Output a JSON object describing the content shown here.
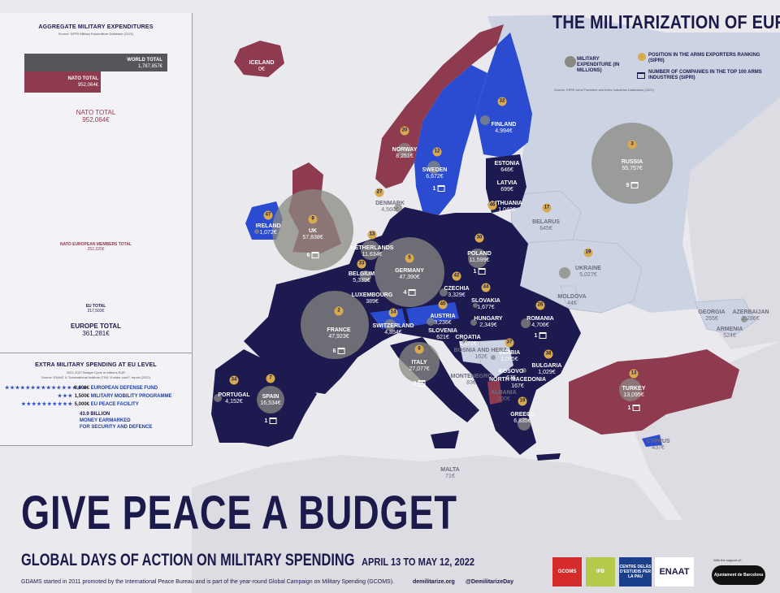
{
  "title": "THE MILITARIZATION OF EUROPE",
  "legend": {
    "military_expenditure": "MILITARY EXPENDITURE (IN MILLIONS)",
    "arms_ranking": "POSITION IN THE ARMS EXPORTERS RANKING (SIPRI)",
    "companies": "NUMBER OF COMPANIES IN THE TOP 100 ARMS INDUSTRIES (SIPRI)",
    "source": "Source: SIPRI Arms Transfers and Arms Industries Databases (2021)"
  },
  "aggregate": {
    "heading": "AGGREGATE MILITARY EXPENDITURES",
    "source": "Source: SIPRI Military Expenditure Database (2021)",
    "world_label": "WORLD TOTAL",
    "world_value": "1,787,857€",
    "nato_label": "NATO TOTAL",
    "nato_value": "952,064€",
    "nato_circle_label": "NATO TOTAL",
    "nato_circle_value": "952,064€",
    "nato_eu_label": "NATO EUROPEAN MEMBERS TOTAL",
    "nato_eu_value": "252,320€",
    "eu_label": "EU TOTAL",
    "eu_value": "217,503€",
    "europe_label": "EUROPE TOTAL",
    "europe_value": "361,281€"
  },
  "extra": {
    "heading": "EXTRA MILITARY SPENDING AT EU LEVEL",
    "sub": "2021-2027 Budget Cycle in millions EUR",
    "source": "Source: ENAAT & Transnational Institute (TNI) “A wider cost?” report (2022)",
    "rows": [
      {
        "stars": "★★★★★★★★★★★★★★★★",
        "amount": "8,000€",
        "label": "EUROPEAN DEFENSE FUND"
      },
      {
        "stars": "★★★",
        "amount": "1,500€",
        "label": "MILITARY MOBILITY PROGRAMME"
      },
      {
        "stars": "★★★★★★★★★★",
        "amount": "5,000€",
        "label": "EU PEACE FACILITY"
      }
    ],
    "star_amount": "43.9 BILLION",
    "star_text_1": "MONEY EARMARKED",
    "star_text_2": "FOR SECURITY AND DEFENCE"
  },
  "countries": [
    {
      "name": "ICELAND",
      "value": "0€"
    },
    {
      "name": "NORWAY",
      "value": "8,251€",
      "rank": "20"
    },
    {
      "name": "SWEDEN",
      "value": "6,672€",
      "rank": "12",
      "companies": "1"
    },
    {
      "name": "FINLAND",
      "value": "4,994€",
      "rank": "32"
    },
    {
      "name": "ESTONIA",
      "value": "646€"
    },
    {
      "name": "LATVIA",
      "value": "699€"
    },
    {
      "name": "LITHUANIA",
      "value": "1,049€",
      "rank": "46"
    },
    {
      "name": "DENMARK",
      "value": "4,560€",
      "rank": "27"
    },
    {
      "name": "RUSSIA",
      "value": "55,757€",
      "rank": "3",
      "companies": "9"
    },
    {
      "name": "BELARUS",
      "value": "645€",
      "rank": "17"
    },
    {
      "name": "UKRAINE",
      "value": "5,027€",
      "rank": "19"
    },
    {
      "name": "MOLDOVA",
      "value": "44€"
    },
    {
      "name": "IRELAND",
      "value": "1,072€",
      "rank": "47"
    },
    {
      "name": "UK",
      "value": "57,838€",
      "rank": "9",
      "companies": "6"
    },
    {
      "name": "NETHERLANDS",
      "value": "11,634€",
      "rank": "13"
    },
    {
      "name": "BELGIUM",
      "value": "5,339€",
      "rank": "33"
    },
    {
      "name": "LUXEMBOURG",
      "value": "389€"
    },
    {
      "name": "GERMANY",
      "value": "47,390€",
      "rank": "5",
      "companies": "4"
    },
    {
      "name": "POLAND",
      "value": "11,599€",
      "rank": "30",
      "companies": "1"
    },
    {
      "name": "CZECHIA",
      "value": "3,329€",
      "rank": "42"
    },
    {
      "name": "SLOVAKIA",
      "value": "1,677€",
      "rank": "44"
    },
    {
      "name": "HUNGARY",
      "value": "2,349€"
    },
    {
      "name": "ROMANIA",
      "value": "4,706€",
      "rank": "26",
      "companies": "1"
    },
    {
      "name": "BULGARIA",
      "value": "1,029€",
      "rank": "38"
    },
    {
      "name": "FRANCE",
      "value": "47,923€",
      "rank": "2",
      "companies": "6"
    },
    {
      "name": "SWITZERLAND",
      "value": "4,854€",
      "rank": "14"
    },
    {
      "name": "AUSTRIA",
      "value": "3,236€",
      "rank": "40"
    },
    {
      "name": "SLOVENIA",
      "value": "621€"
    },
    {
      "name": "CROATIA",
      "value": "1,471€"
    },
    {
      "name": "SERBIA",
      "value": "1,075€",
      "rank": "37"
    },
    {
      "name": "BOSNIA AND HERZ.",
      "value": "162€"
    },
    {
      "name": "MONTENEGRO",
      "value": "83€"
    },
    {
      "name": "KOSOVO",
      "value": "67€"
    },
    {
      "name": "NORTH MACEDONIA",
      "value": "167€"
    },
    {
      "name": "ALBANIA",
      "value": "200€"
    },
    {
      "name": "GREECE",
      "value": "6,835€",
      "rank": "19"
    },
    {
      "name": "ITALY",
      "value": "27,077€",
      "rank": "6",
      "companies": "2"
    },
    {
      "name": "MALTA",
      "value": "71€"
    },
    {
      "name": "SPAIN",
      "value": "16,534€",
      "rank": "7",
      "companies": "1"
    },
    {
      "name": "PORTUGAL",
      "value": "4,152€",
      "rank": "34"
    },
    {
      "name": "TURKEY",
      "value": "13,095€",
      "rank": "13",
      "companies": "1"
    },
    {
      "name": "CYPRUS",
      "value": "437€"
    },
    {
      "name": "GEORGIA",
      "value": "255€"
    },
    {
      "name": "ARMENIA",
      "value": "524€"
    },
    {
      "name": "AZERBAIJAN",
      "value": "2,286€"
    }
  ],
  "footer": {
    "slogan": "GIVE PEACE A BUDGET",
    "days": "GLOBAL DAYS OF ACTION ON MILITARY SPENDING",
    "dates": "APRIL 13 TO MAY 12, 2022",
    "note": "GDAMS started in 2011 promoted by the International Peace Bureau and is part of the year-round Global Campaign on Military Spending (GCOMS).",
    "site": "demilitarize.org",
    "twitter": "@DemilitarizeDay",
    "support": "With the support of:",
    "logos": [
      "GCOMS",
      "IPB",
      "CENTRE DELÀS D'ESTUDIS PER LA PAU",
      "ENAAT",
      "Ajuntament de Barcelona"
    ]
  },
  "colors": {
    "eu_nato": "#1d1a4f",
    "nato_only": "#8e3a4f",
    "eu_only": "#2b4bd0",
    "non_member": "#ccd3e3",
    "neighbour": "#dcdce2",
    "sea": "#e9e9ee",
    "bubble": "#8a8a82",
    "rank": "#d7aa4e"
  }
}
